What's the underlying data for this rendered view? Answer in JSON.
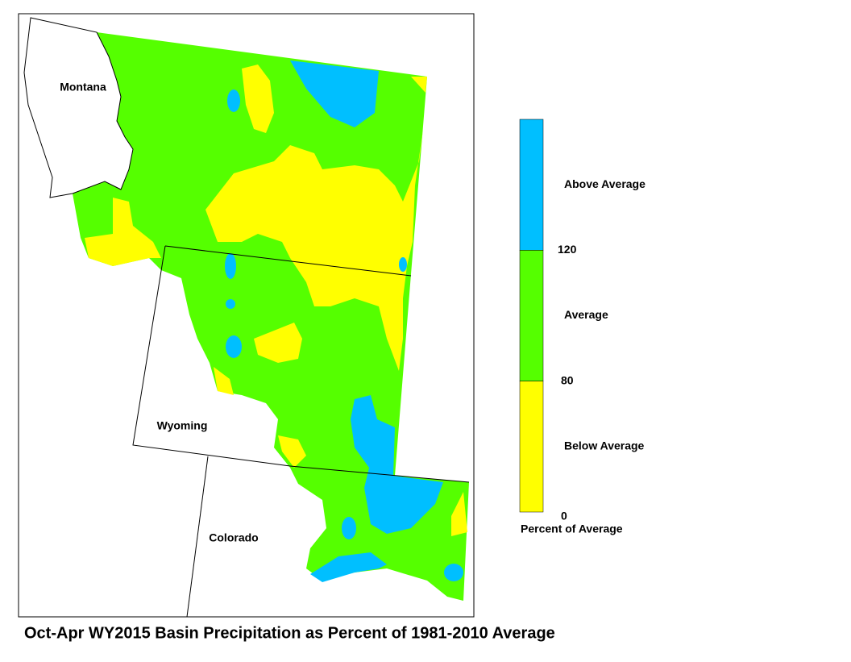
{
  "title": "Oct-Apr WY2015 Basin Precipitation as Percent of 1981-2010 Average",
  "states": [
    "Montana",
    "Wyoming",
    "Colorado"
  ],
  "legend": {
    "title": "Percent of Average",
    "classes": [
      {
        "label": "Above Average",
        "color": "#00bfff"
      },
      {
        "label": "Average",
        "color": "#55ff00"
      },
      {
        "label": "Below Average",
        "color": "#ffff00"
      }
    ],
    "breaks": [
      120,
      80,
      0
    ]
  }
}
